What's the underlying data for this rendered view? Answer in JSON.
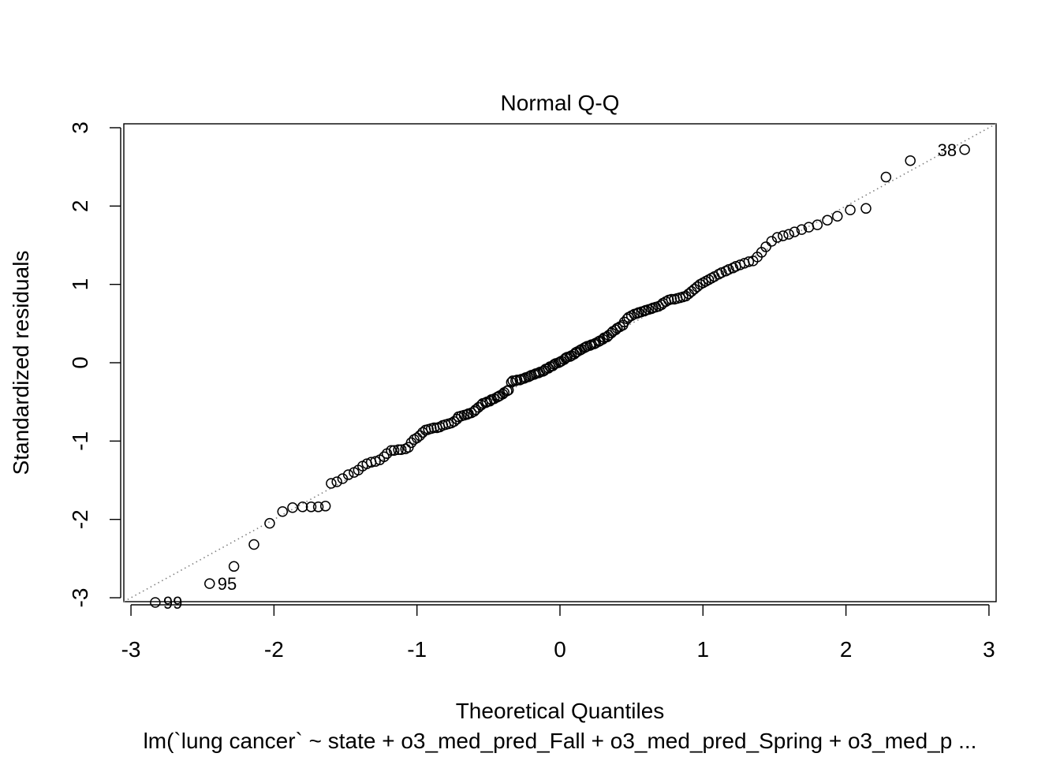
{
  "chart_data": {
    "type": "scatter",
    "title": "Normal Q-Q",
    "xlabel": "Theoretical Quantiles",
    "ylabel": "Standardized residuals",
    "subtitle": "lm(`lung cancer` ~ state + o3_med_pred_Fall + o3_med_pred_Spring + o3_med_p ...",
    "xlim": [
      -3.05,
      3.05
    ],
    "ylim": [
      -3.05,
      3.05
    ],
    "x_ticks": [
      -3,
      -2,
      -1,
      0,
      1,
      2,
      3
    ],
    "x_tick_labels": [
      "-3",
      "-2",
      "-1",
      "0",
      "1",
      "2",
      "3"
    ],
    "y_ticks": [
      -3,
      -2,
      -1,
      0,
      1,
      2,
      3
    ],
    "y_tick_labels": [
      "-3",
      "-2",
      "-1",
      "0",
      "1",
      "2",
      "3"
    ],
    "grid": false,
    "reference_line": {
      "intercept": 0.0,
      "slope": 1.0,
      "style": "dotted",
      "color": "#808080"
    },
    "point_color": "#000000",
    "points": [
      [
        -2.83,
        -3.06
      ],
      [
        -2.45,
        -2.82
      ],
      [
        -2.28,
        -2.6
      ],
      [
        -2.14,
        -2.32
      ],
      [
        -2.03,
        -2.05
      ],
      [
        -1.94,
        -1.9
      ],
      [
        -1.87,
        -1.85
      ],
      [
        -1.8,
        -1.84
      ],
      [
        -1.74,
        -1.84
      ],
      [
        -1.69,
        -1.84
      ],
      [
        -1.64,
        -1.83
      ],
      [
        -1.6,
        -1.54
      ],
      [
        -1.56,
        -1.52
      ],
      [
        -1.52,
        -1.48
      ],
      [
        -1.48,
        -1.43
      ],
      [
        -1.44,
        -1.4
      ],
      [
        -1.41,
        -1.37
      ],
      [
        -1.38,
        -1.32
      ],
      [
        -1.35,
        -1.29
      ],
      [
        -1.32,
        -1.27
      ],
      [
        -1.29,
        -1.26
      ],
      [
        -1.26,
        -1.24
      ],
      [
        -1.23,
        -1.2
      ],
      [
        -1.21,
        -1.16
      ],
      [
        -1.18,
        -1.12
      ],
      [
        -1.16,
        -1.12
      ],
      [
        -1.13,
        -1.11
      ],
      [
        -1.11,
        -1.11
      ],
      [
        -1.08,
        -1.1
      ],
      [
        -1.06,
        -1.08
      ],
      [
        -1.04,
        -1.02
      ],
      [
        -1.02,
        -0.98
      ],
      [
        -1.0,
        -0.96
      ],
      [
        -0.98,
        -0.93
      ],
      [
        -0.96,
        -0.89
      ],
      [
        -0.94,
        -0.86
      ],
      [
        -0.92,
        -0.85
      ],
      [
        -0.9,
        -0.84
      ],
      [
        -0.88,
        -0.83
      ],
      [
        -0.86,
        -0.83
      ],
      [
        -0.84,
        -0.82
      ],
      [
        -0.82,
        -0.8
      ],
      [
        -0.8,
        -0.79
      ],
      [
        -0.78,
        -0.78
      ],
      [
        -0.76,
        -0.77
      ],
      [
        -0.74,
        -0.75
      ],
      [
        -0.72,
        -0.72
      ],
      [
        -0.71,
        -0.69
      ],
      [
        -0.69,
        -0.68
      ],
      [
        -0.67,
        -0.67
      ],
      [
        -0.65,
        -0.66
      ],
      [
        -0.64,
        -0.65
      ],
      [
        -0.62,
        -0.64
      ],
      [
        -0.6,
        -0.62
      ],
      [
        -0.59,
        -0.6
      ],
      [
        -0.57,
        -0.57
      ],
      [
        -0.55,
        -0.54
      ],
      [
        -0.54,
        -0.52
      ],
      [
        -0.52,
        -0.51
      ],
      [
        -0.51,
        -0.5
      ],
      [
        -0.49,
        -0.49
      ],
      [
        -0.48,
        -0.47
      ],
      [
        -0.46,
        -0.46
      ],
      [
        -0.44,
        -0.44
      ],
      [
        -0.43,
        -0.43
      ],
      [
        -0.42,
        -0.42
      ],
      [
        -0.4,
        -0.4
      ],
      [
        -0.39,
        -0.38
      ],
      [
        -0.37,
        -0.36
      ],
      [
        -0.36,
        -0.35
      ],
      [
        -0.34,
        -0.25
      ],
      [
        -0.33,
        -0.23
      ],
      [
        -0.31,
        -0.23
      ],
      [
        -0.3,
        -0.22
      ],
      [
        -0.28,
        -0.22
      ],
      [
        -0.27,
        -0.21
      ],
      [
        -0.25,
        -0.2
      ],
      [
        -0.24,
        -0.19
      ],
      [
        -0.22,
        -0.18
      ],
      [
        -0.21,
        -0.17
      ],
      [
        -0.2,
        -0.16
      ],
      [
        -0.18,
        -0.15
      ],
      [
        -0.17,
        -0.14
      ],
      [
        -0.15,
        -0.13
      ],
      [
        -0.14,
        -0.12
      ],
      [
        -0.12,
        -0.11
      ],
      [
        -0.11,
        -0.1
      ],
      [
        -0.1,
        -0.08
      ],
      [
        -0.08,
        -0.07
      ],
      [
        -0.07,
        -0.05
      ],
      [
        -0.05,
        -0.04
      ],
      [
        -0.04,
        -0.02
      ],
      [
        -0.03,
        -0.01
      ],
      [
        -0.01,
        0.0
      ],
      [
        0.0,
        0.01
      ],
      [
        0.01,
        0.02
      ],
      [
        0.03,
        0.04
      ],
      [
        0.04,
        0.06
      ],
      [
        0.05,
        0.07
      ],
      [
        0.07,
        0.08
      ],
      [
        0.08,
        0.09
      ],
      [
        0.1,
        0.11
      ],
      [
        0.11,
        0.13
      ],
      [
        0.12,
        0.14
      ],
      [
        0.14,
        0.16
      ],
      [
        0.15,
        0.17
      ],
      [
        0.17,
        0.19
      ],
      [
        0.18,
        0.2
      ],
      [
        0.19,
        0.21
      ],
      [
        0.21,
        0.22
      ],
      [
        0.22,
        0.23
      ],
      [
        0.24,
        0.24
      ],
      [
        0.25,
        0.25
      ],
      [
        0.27,
        0.27
      ],
      [
        0.28,
        0.28
      ],
      [
        0.3,
        0.3
      ],
      [
        0.31,
        0.32
      ],
      [
        0.33,
        0.33
      ],
      [
        0.34,
        0.35
      ],
      [
        0.36,
        0.38
      ],
      [
        0.37,
        0.4
      ],
      [
        0.39,
        0.42
      ],
      [
        0.4,
        0.44
      ],
      [
        0.42,
        0.46
      ],
      [
        0.44,
        0.48
      ],
      [
        0.45,
        0.52
      ],
      [
        0.47,
        0.56
      ],
      [
        0.48,
        0.58
      ],
      [
        0.5,
        0.6
      ],
      [
        0.52,
        0.62
      ],
      [
        0.54,
        0.63
      ],
      [
        0.55,
        0.64
      ],
      [
        0.57,
        0.65
      ],
      [
        0.59,
        0.66
      ],
      [
        0.6,
        0.67
      ],
      [
        0.62,
        0.68
      ],
      [
        0.64,
        0.69
      ],
      [
        0.65,
        0.7
      ],
      [
        0.67,
        0.71
      ],
      [
        0.69,
        0.72
      ],
      [
        0.71,
        0.74
      ],
      [
        0.72,
        0.76
      ],
      [
        0.74,
        0.78
      ],
      [
        0.76,
        0.8
      ],
      [
        0.78,
        0.81
      ],
      [
        0.8,
        0.81
      ],
      [
        0.82,
        0.82
      ],
      [
        0.84,
        0.83
      ],
      [
        0.86,
        0.84
      ],
      [
        0.88,
        0.85
      ],
      [
        0.9,
        0.88
      ],
      [
        0.92,
        0.91
      ],
      [
        0.94,
        0.94
      ],
      [
        0.96,
        0.97
      ],
      [
        0.98,
        1.0
      ],
      [
        1.0,
        1.02
      ],
      [
        1.02,
        1.04
      ],
      [
        1.04,
        1.06
      ],
      [
        1.06,
        1.08
      ],
      [
        1.08,
        1.1
      ],
      [
        1.11,
        1.13
      ],
      [
        1.13,
        1.15
      ],
      [
        1.16,
        1.17
      ],
      [
        1.18,
        1.19
      ],
      [
        1.21,
        1.21
      ],
      [
        1.23,
        1.23
      ],
      [
        1.26,
        1.25
      ],
      [
        1.29,
        1.27
      ],
      [
        1.32,
        1.29
      ],
      [
        1.35,
        1.3
      ],
      [
        1.38,
        1.35
      ],
      [
        1.41,
        1.41
      ],
      [
        1.44,
        1.48
      ],
      [
        1.48,
        1.55
      ],
      [
        1.52,
        1.6
      ],
      [
        1.56,
        1.62
      ],
      [
        1.6,
        1.64
      ],
      [
        1.64,
        1.67
      ],
      [
        1.69,
        1.7
      ],
      [
        1.74,
        1.73
      ],
      [
        1.8,
        1.76
      ],
      [
        1.87,
        1.82
      ],
      [
        1.94,
        1.87
      ],
      [
        2.03,
        1.95
      ],
      [
        2.14,
        1.97
      ],
      [
        2.28,
        2.37
      ],
      [
        2.45,
        2.58
      ],
      [
        2.83,
        2.72
      ]
    ],
    "annotations": [
      {
        "text": "99",
        "x": -2.83,
        "y": -3.06,
        "side": "right"
      },
      {
        "text": "95",
        "x": -2.45,
        "y": -2.82,
        "side": "right"
      },
      {
        "text": "38",
        "x": 2.83,
        "y": 2.72,
        "side": "left"
      }
    ]
  }
}
